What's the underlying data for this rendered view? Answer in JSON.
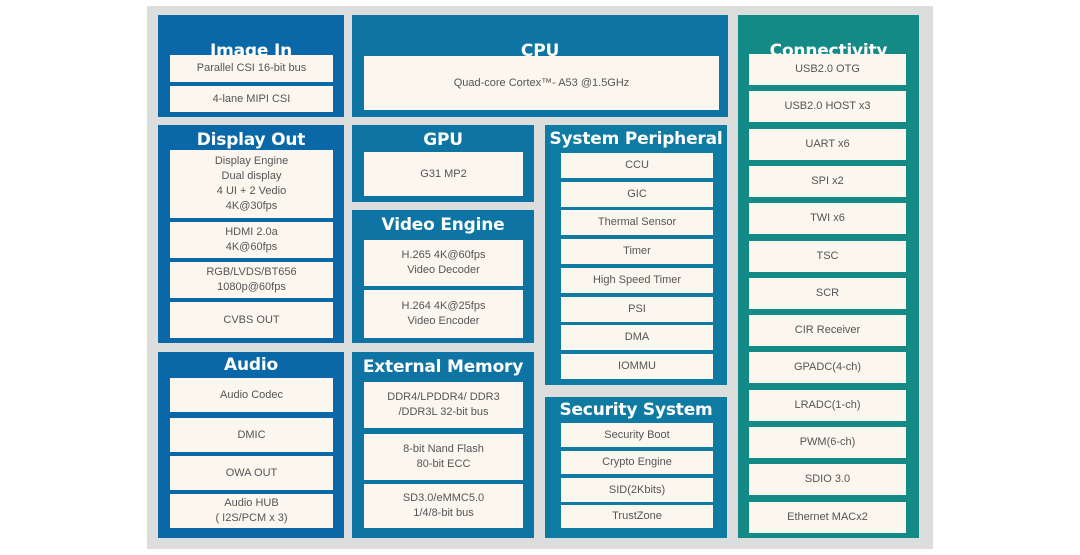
{
  "colors": {
    "blue": "#0b68a8",
    "mid": "#0d74a4",
    "teal": "#138a86",
    "item_bg": "#fbf6ee",
    "panel_bg": "#dcdddd"
  },
  "blocks": {
    "image_in": {
      "title": "Image In",
      "items": [
        "Parallel CSI 16-bit bus",
        "4-lane MIPI CSI"
      ]
    },
    "cpu": {
      "title": "CPU",
      "items": [
        "Quad-core Cortex™- A53 @1.5GHz"
      ]
    },
    "connectivity": {
      "title": "Connectivity",
      "items": [
        "USB2.0 OTG",
        "USB2.0 HOST x3",
        "UART x6",
        "SPI x2",
        "TWI x6",
        "TSC",
        "SCR",
        "CIR Receiver",
        "GPADC(4-ch)",
        "LRADC(1-ch)",
        "PWM(6-ch)",
        "SDIO 3.0",
        "Ethernet MACx2"
      ]
    },
    "display_out": {
      "title": "Display Out",
      "items": [
        "Display Engine\nDual display\n4 UI  + 2 Vedio\n4K@30fps",
        "HDMI 2.0a\n4K@60fps",
        "RGB/LVDS/BT656\n1080p@60fps",
        "CVBS OUT"
      ]
    },
    "gpu": {
      "title": "GPU",
      "items": [
        "G31 MP2"
      ]
    },
    "video_engine": {
      "title": "Video Engine",
      "items": [
        "H.265 4K@60fps\nVideo Decoder",
        "H.264 4K@25fps\nVideo Encoder"
      ]
    },
    "system_peripheral": {
      "title": "System Peripheral",
      "items": [
        "CCU",
        "GIC",
        "Thermal Sensor",
        "Timer",
        "High Speed Timer",
        "PSI",
        "DMA",
        "IOMMU"
      ]
    },
    "audio": {
      "title": "Audio",
      "items": [
        "Audio Codec",
        "DMIC",
        "OWA OUT",
        "Audio HUB\n( I2S/PCM x 3)"
      ]
    },
    "external_memory": {
      "title": "External Memory",
      "items": [
        "DDR4/LPDDR4/ DDR3\n/DDR3L 32-bit bus",
        "8-bit Nand Flash\n80-bit ECC",
        "SD3.0/eMMC5.0\n1/4/8-bit bus"
      ]
    },
    "security_system": {
      "title": "Security System",
      "items": [
        "Security Boot",
        "Crypto Engine",
        "SID(2Kbits)",
        "TrustZone"
      ]
    }
  }
}
